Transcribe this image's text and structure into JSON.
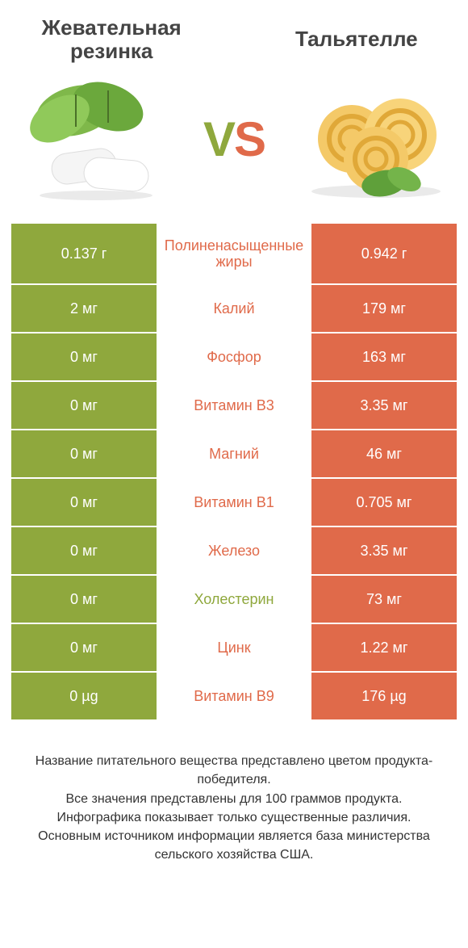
{
  "colors": {
    "left_bg": "#8fa83d",
    "right_bg": "#e06a4a",
    "left_text": "#8fa83d",
    "right_text": "#e06a4a",
    "title_text": "#444444",
    "footer_text": "#333333",
    "background": "#ffffff"
  },
  "header": {
    "left_title": "Жевательная резинка",
    "right_title": "Тальятелле",
    "vs_v": "V",
    "vs_s": "S"
  },
  "rows": [
    {
      "left": "0.137 г",
      "label": "Полиненасыщенные жиры",
      "right": "0.942 г",
      "winner": "right",
      "tall": true
    },
    {
      "left": "2 мг",
      "label": "Калий",
      "right": "179 мг",
      "winner": "right"
    },
    {
      "left": "0 мг",
      "label": "Фосфор",
      "right": "163 мг",
      "winner": "right"
    },
    {
      "left": "0 мг",
      "label": "Витамин B3",
      "right": "3.35 мг",
      "winner": "right"
    },
    {
      "left": "0 мг",
      "label": "Магний",
      "right": "46 мг",
      "winner": "right"
    },
    {
      "left": "0 мг",
      "label": "Витамин B1",
      "right": "0.705 мг",
      "winner": "right"
    },
    {
      "left": "0 мг",
      "label": "Железо",
      "right": "3.35 мг",
      "winner": "right"
    },
    {
      "left": "0 мг",
      "label": "Холестерин",
      "right": "73 мг",
      "winner": "left"
    },
    {
      "left": "0 мг",
      "label": "Цинк",
      "right": "1.22 мг",
      "winner": "right"
    },
    {
      "left": "0 µg",
      "label": "Витамин B9",
      "right": "176 µg",
      "winner": "right"
    }
  ],
  "footer": {
    "line1": "Название питательного вещества представлено цветом продукта-победителя.",
    "line2": "Все значения представлены для 100 граммов продукта.",
    "line3": "Инфографика показывает только существенные различия.",
    "line4": "Основным источником информации является база министерства сельского хозяйства США."
  }
}
